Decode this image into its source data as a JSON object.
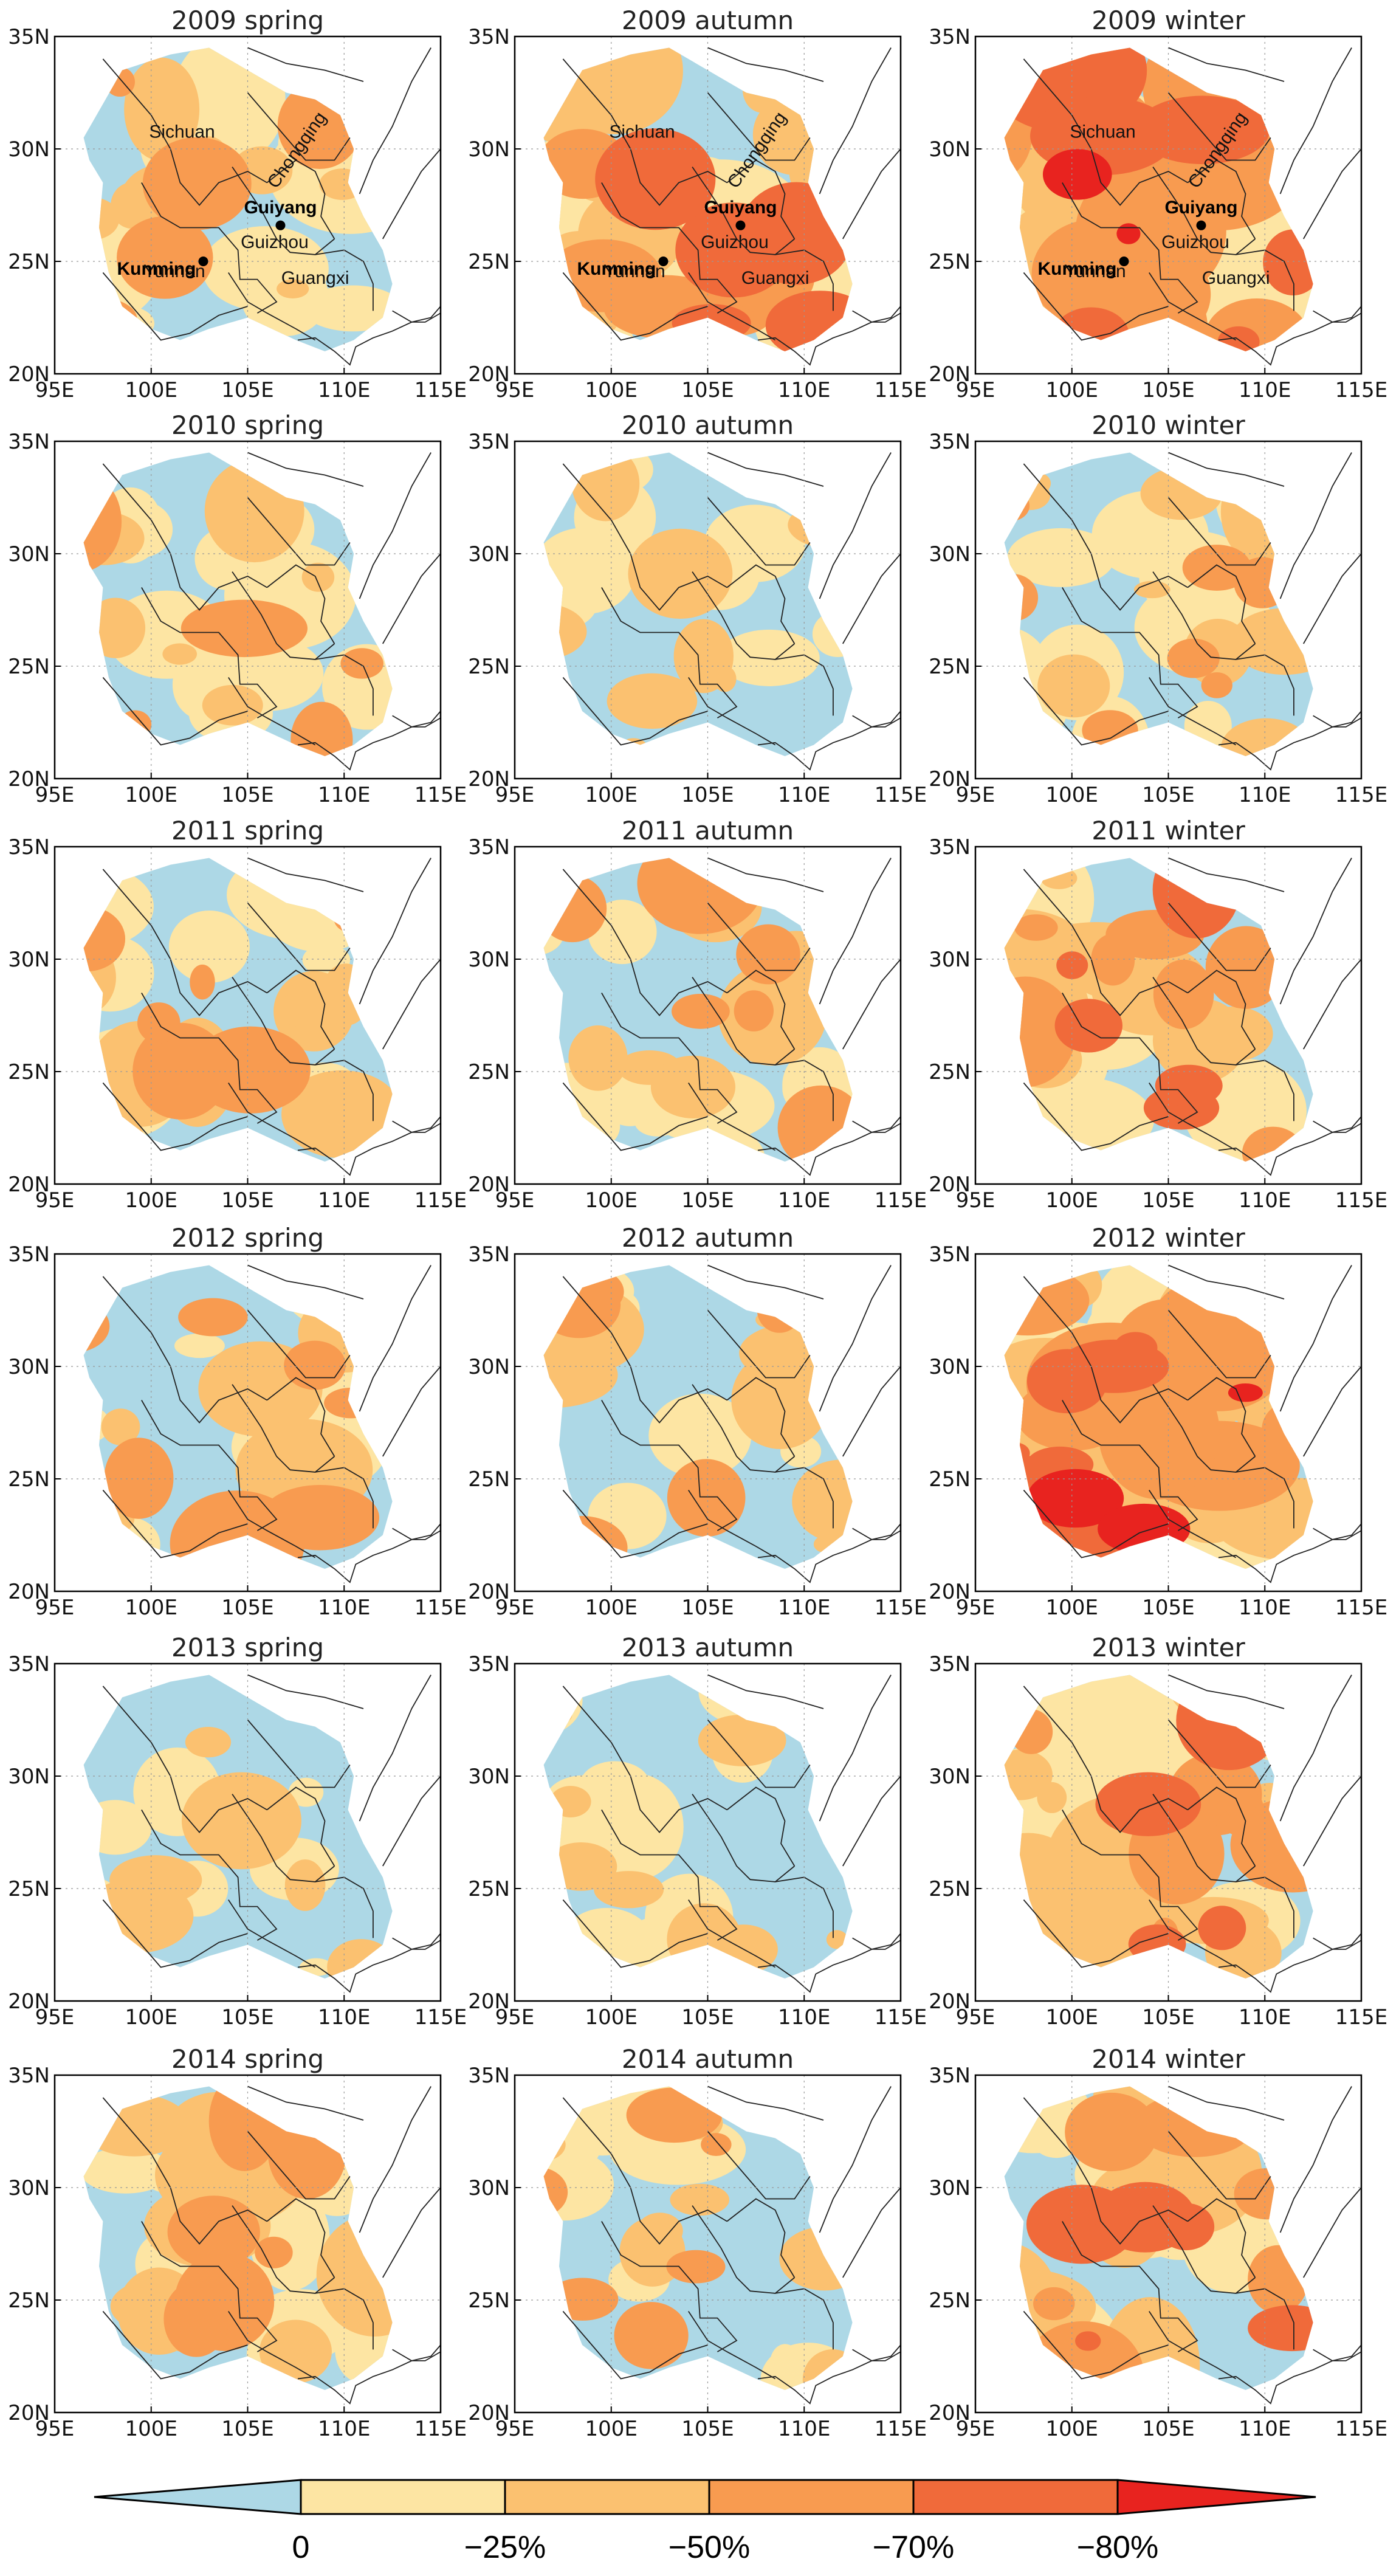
{
  "map": {
    "rows": [
      {
        "year": "2009",
        "panels": [
          {
            "title": "2009  spring",
            "intensity": 0.45
          },
          {
            "title": "2009  autumn",
            "intensity": 0.6
          },
          {
            "title": "2009  winter",
            "intensity": 0.9
          }
        ]
      },
      {
        "year": "2010",
        "panels": [
          {
            "title": "2010  spring",
            "intensity": 0.35
          },
          {
            "title": "2010  autumn",
            "intensity": 0.3
          },
          {
            "title": "2010  winter",
            "intensity": 0.4
          }
        ]
      },
      {
        "year": "2011",
        "panels": [
          {
            "title": "2011  spring",
            "intensity": 0.4
          },
          {
            "title": "2011  autumn",
            "intensity": 0.35
          },
          {
            "title": "2011  winter",
            "intensity": 0.6
          }
        ]
      },
      {
        "year": "2012",
        "panels": [
          {
            "title": "2012  spring",
            "intensity": 0.45
          },
          {
            "title": "2012  autumn",
            "intensity": 0.35
          },
          {
            "title": "2012  winter",
            "intensity": 0.9
          }
        ]
      },
      {
        "year": "2013",
        "panels": [
          {
            "title": "2013  spring",
            "intensity": 0.3
          },
          {
            "title": "2013  autumn",
            "intensity": 0.3
          },
          {
            "title": "2013  winter",
            "intensity": 0.55
          }
        ]
      },
      {
        "year": "2014",
        "panels": [
          {
            "title": "2014  spring",
            "intensity": 0.5
          },
          {
            "title": "2014  autumn",
            "intensity": 0.35
          },
          {
            "title": "2014  winter",
            "intensity": 0.55
          }
        ]
      }
    ],
    "lat_ticks": [
      "35N",
      "30N",
      "25N",
      "20N"
    ],
    "lon_ticks": [
      "95E",
      "100E",
      "105E",
      "110E",
      "115E"
    ],
    "lat_range": [
      20,
      35
    ],
    "lon_range": [
      95,
      115
    ],
    "provinces": [
      "Sichuan",
      "Chongqing",
      "Guizhou",
      "Yunnan",
      "Guangxi"
    ],
    "cities": [
      {
        "name": "Kunming",
        "lon": 102.7,
        "lat": 25.0
      },
      {
        "name": "Guiyang",
        "lon": 106.7,
        "lat": 26.6
      }
    ],
    "colorbar": {
      "labels": [
        "0",
        "−25%",
        "−50%",
        "−70%",
        "−80%"
      ],
      "colors": [
        "#add8e6",
        "#fde5a3",
        "#fbc170",
        "#f89b50",
        "#f06a3a",
        "#e8231f"
      ]
    }
  }
}
